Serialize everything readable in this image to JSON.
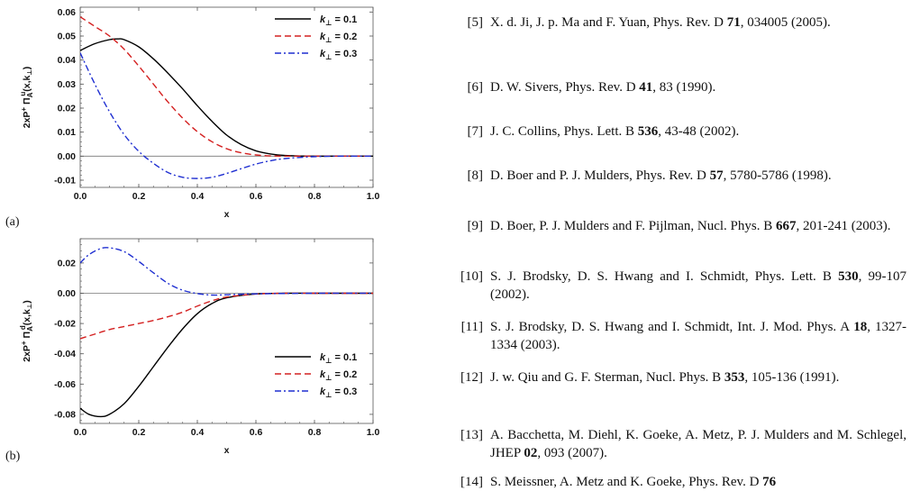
{
  "chart_data": [
    {
      "panel_label": "(a)",
      "type": "line",
      "xlabel": "x",
      "ylabel": "2xP⁺ Πᵤᴸ(x,k⊥)",
      "ylabel_parts": {
        "main": "2xP",
        "sup_plus": "+",
        "pi": " Π",
        "sub": "A",
        "sup": "u",
        "args": "(x,k",
        "perp": "⊥",
        "close": ")"
      },
      "xlim": [
        0.0,
        1.0
      ],
      "ylim": [
        -0.013,
        0.062
      ],
      "xticks": [
        0.0,
        0.2,
        0.4,
        0.6,
        0.8,
        1.0
      ],
      "xtick_labels": [
        "0.0",
        "0.2",
        "0.4",
        "0.6",
        "0.8",
        "1.0"
      ],
      "yticks": [
        -0.01,
        0.0,
        0.01,
        0.02,
        0.03,
        0.04,
        0.05,
        0.06
      ],
      "ytick_labels": [
        "-0.01",
        "0.00",
        "0.01",
        "0.02",
        "0.03",
        "0.04",
        "0.05",
        "0.06"
      ],
      "zero_line": true,
      "legend_position": "top-right",
      "series": [
        {
          "name": "k⊥ = 0.1",
          "name_parts": [
            "k",
            "⊥",
            " = 0.1"
          ],
          "color": "#000000",
          "dash": "solid",
          "x": [
            0.0,
            0.05,
            0.1,
            0.13,
            0.15,
            0.2,
            0.25,
            0.3,
            0.35,
            0.4,
            0.45,
            0.5,
            0.55,
            0.6,
            0.65,
            0.7,
            0.8,
            0.9,
            1.0
          ],
          "y": [
            0.044,
            0.0468,
            0.0485,
            0.0488,
            0.0485,
            0.0455,
            0.0405,
            0.0345,
            0.028,
            0.021,
            0.0145,
            0.0088,
            0.0048,
            0.0022,
            0.0009,
            0.0003,
            0.0,
            0.0,
            0.0
          ]
        },
        {
          "name": "k⊥ = 0.2",
          "name_parts": [
            "k",
            "⊥",
            " = 0.2"
          ],
          "color": "#d42020",
          "dash": "dashed",
          "x": [
            0.0,
            0.05,
            0.1,
            0.15,
            0.2,
            0.25,
            0.3,
            0.35,
            0.4,
            0.45,
            0.5,
            0.55,
            0.6,
            0.65,
            0.7,
            0.8,
            0.9,
            1.0
          ],
          "y": [
            0.058,
            0.054,
            0.05,
            0.0445,
            0.0375,
            0.03,
            0.0225,
            0.0158,
            0.0102,
            0.006,
            0.0031,
            0.0014,
            0.0005,
            0.0001,
            0.0,
            0.0,
            0.0,
            0.0
          ]
        },
        {
          "name": "k⊥ = 0.3",
          "name_parts": [
            "k",
            "⊥",
            " = 0.3"
          ],
          "color": "#1f2fd1",
          "dash": "dash-dot",
          "x": [
            0.0,
            0.05,
            0.1,
            0.15,
            0.2,
            0.25,
            0.3,
            0.35,
            0.4,
            0.45,
            0.5,
            0.55,
            0.6,
            0.65,
            0.7,
            0.8,
            0.9,
            1.0
          ],
          "y": [
            0.043,
            0.03,
            0.0185,
            0.009,
            0.002,
            -0.003,
            -0.0068,
            -0.0088,
            -0.0093,
            -0.0088,
            -0.0072,
            -0.0052,
            -0.0033,
            -0.0019,
            -0.001,
            -0.0002,
            0.0,
            0.0
          ]
        }
      ]
    },
    {
      "panel_label": "(b)",
      "type": "line",
      "xlabel": "x",
      "ylabel": "2xP⁺ Πᵈᴸ(x,k⊥)",
      "ylabel_parts": {
        "main": "2xP",
        "sup_plus": "+",
        "pi": " Π",
        "sub": "A",
        "sup": "d",
        "args": "(x,k",
        "perp": "⊥",
        "close": ")"
      },
      "xlim": [
        0.0,
        1.0
      ],
      "ylim": [
        -0.086,
        0.036
      ],
      "xticks": [
        0.0,
        0.2,
        0.4,
        0.6,
        0.8,
        1.0
      ],
      "xtick_labels": [
        "0.0",
        "0.2",
        "0.4",
        "0.6",
        "0.8",
        "1.0"
      ],
      "yticks": [
        -0.08,
        -0.06,
        -0.04,
        -0.02,
        0.0,
        0.02
      ],
      "ytick_labels": [
        "-0.08",
        "-0.06",
        "-0.04",
        "-0.02",
        "0.00",
        "0.02"
      ],
      "zero_line": true,
      "legend_position": "bottom-right",
      "series": [
        {
          "name": "k⊥ = 0.1",
          "name_parts": [
            "k",
            "⊥",
            " = 0.1"
          ],
          "color": "#000000",
          "dash": "solid",
          "x": [
            0.0,
            0.03,
            0.07,
            0.1,
            0.15,
            0.2,
            0.25,
            0.3,
            0.35,
            0.4,
            0.45,
            0.5,
            0.6,
            0.7,
            0.8,
            1.0
          ],
          "y": [
            -0.076,
            -0.08,
            -0.0815,
            -0.08,
            -0.073,
            -0.0615,
            -0.0485,
            -0.0355,
            -0.0235,
            -0.0135,
            -0.0068,
            -0.003,
            -0.0005,
            0.0,
            0.0,
            0.0
          ]
        },
        {
          "name": "k⊥ = 0.2",
          "name_parts": [
            "k",
            "⊥",
            " = 0.2"
          ],
          "color": "#d42020",
          "dash": "dashed",
          "x": [
            0.0,
            0.05,
            0.1,
            0.15,
            0.2,
            0.25,
            0.3,
            0.35,
            0.4,
            0.45,
            0.5,
            0.6,
            0.7,
            0.8,
            1.0
          ],
          "y": [
            -0.03,
            -0.027,
            -0.024,
            -0.022,
            -0.02,
            -0.018,
            -0.0155,
            -0.0125,
            -0.0085,
            -0.005,
            -0.0025,
            -0.0005,
            0.0,
            0.0,
            0.0
          ]
        },
        {
          "name": "k⊥ = 0.3",
          "name_parts": [
            "k",
            "⊥",
            " = 0.3"
          ],
          "color": "#1f2fd1",
          "dash": "dash-dot",
          "x": [
            0.0,
            0.03,
            0.07,
            0.1,
            0.15,
            0.2,
            0.25,
            0.3,
            0.35,
            0.4,
            0.45,
            0.5,
            0.6,
            0.8,
            1.0
          ],
          "y": [
            0.02,
            0.0255,
            0.0295,
            0.03,
            0.0275,
            0.021,
            0.0135,
            0.0065,
            0.002,
            -0.0002,
            -0.0012,
            -0.001,
            -0.0004,
            0.0,
            0.0
          ]
        }
      ]
    }
  ],
  "references": [
    {
      "num": "[5]",
      "parts": [
        {
          "t": "X. d. Ji, J. p. Ma and F. Yuan, Phys. Rev. D "
        },
        {
          "t": "71",
          "b": true
        },
        {
          "t": ", 034005 (2005)."
        }
      ]
    },
    {
      "num": "[6]",
      "parts": [
        {
          "t": "D. W. Sivers, Phys. Rev. D "
        },
        {
          "t": "41",
          "b": true
        },
        {
          "t": ", 83 (1990)."
        }
      ]
    },
    {
      "num": "[7]",
      "parts": [
        {
          "t": "J. C. Collins, Phys. Lett. B "
        },
        {
          "t": "536",
          "b": true
        },
        {
          "t": ", 43-48 (2002)."
        }
      ]
    },
    {
      "num": "[8]",
      "parts": [
        {
          "t": "D. Boer and P. J. Mulders, Phys. Rev. D "
        },
        {
          "t": "57",
          "b": true
        },
        {
          "t": ", 5780-5786 (1998)."
        }
      ]
    },
    {
      "num": "[9]",
      "parts": [
        {
          "t": "D. Boer, P. J. Mulders and F. Pijlman, Nucl. Phys. B "
        },
        {
          "t": "667",
          "b": true
        },
        {
          "t": ", 201-241 (2003)."
        }
      ]
    },
    {
      "num": "[10]",
      "parts": [
        {
          "t": "S. J. Brodsky, D. S. Hwang and I. Schmidt, Phys. Lett. B "
        },
        {
          "t": "530",
          "b": true
        },
        {
          "t": ", 99-107 (2002)."
        }
      ]
    },
    {
      "num": "[11]",
      "parts": [
        {
          "t": "S. J. Brodsky, D. S. Hwang and I. Schmidt, Int. J. Mod. Phys. A "
        },
        {
          "t": "18",
          "b": true
        },
        {
          "t": ", 1327-1334 (2003)."
        }
      ]
    },
    {
      "num": "[12]",
      "parts": [
        {
          "t": "J. w. Qiu and G. F. Sterman, Nucl. Phys. B "
        },
        {
          "t": "353",
          "b": true
        },
        {
          "t": ", 105-136 (1991)."
        }
      ]
    },
    {
      "num": "[13]",
      "parts": [
        {
          "t": "A. Bacchetta, M. Diehl, K. Goeke, A. Metz, P. J. Mulders and M. Schlegel, JHEP "
        },
        {
          "t": "02",
          "b": true
        },
        {
          "t": ", 093 (2007)."
        }
      ]
    },
    {
      "num": "[14]",
      "parts": [
        {
          "t": "S. Meissner, A. Metz and K. Goeke, Phys. Rev. D "
        },
        {
          "t": "76",
          "b": true
        }
      ]
    }
  ]
}
